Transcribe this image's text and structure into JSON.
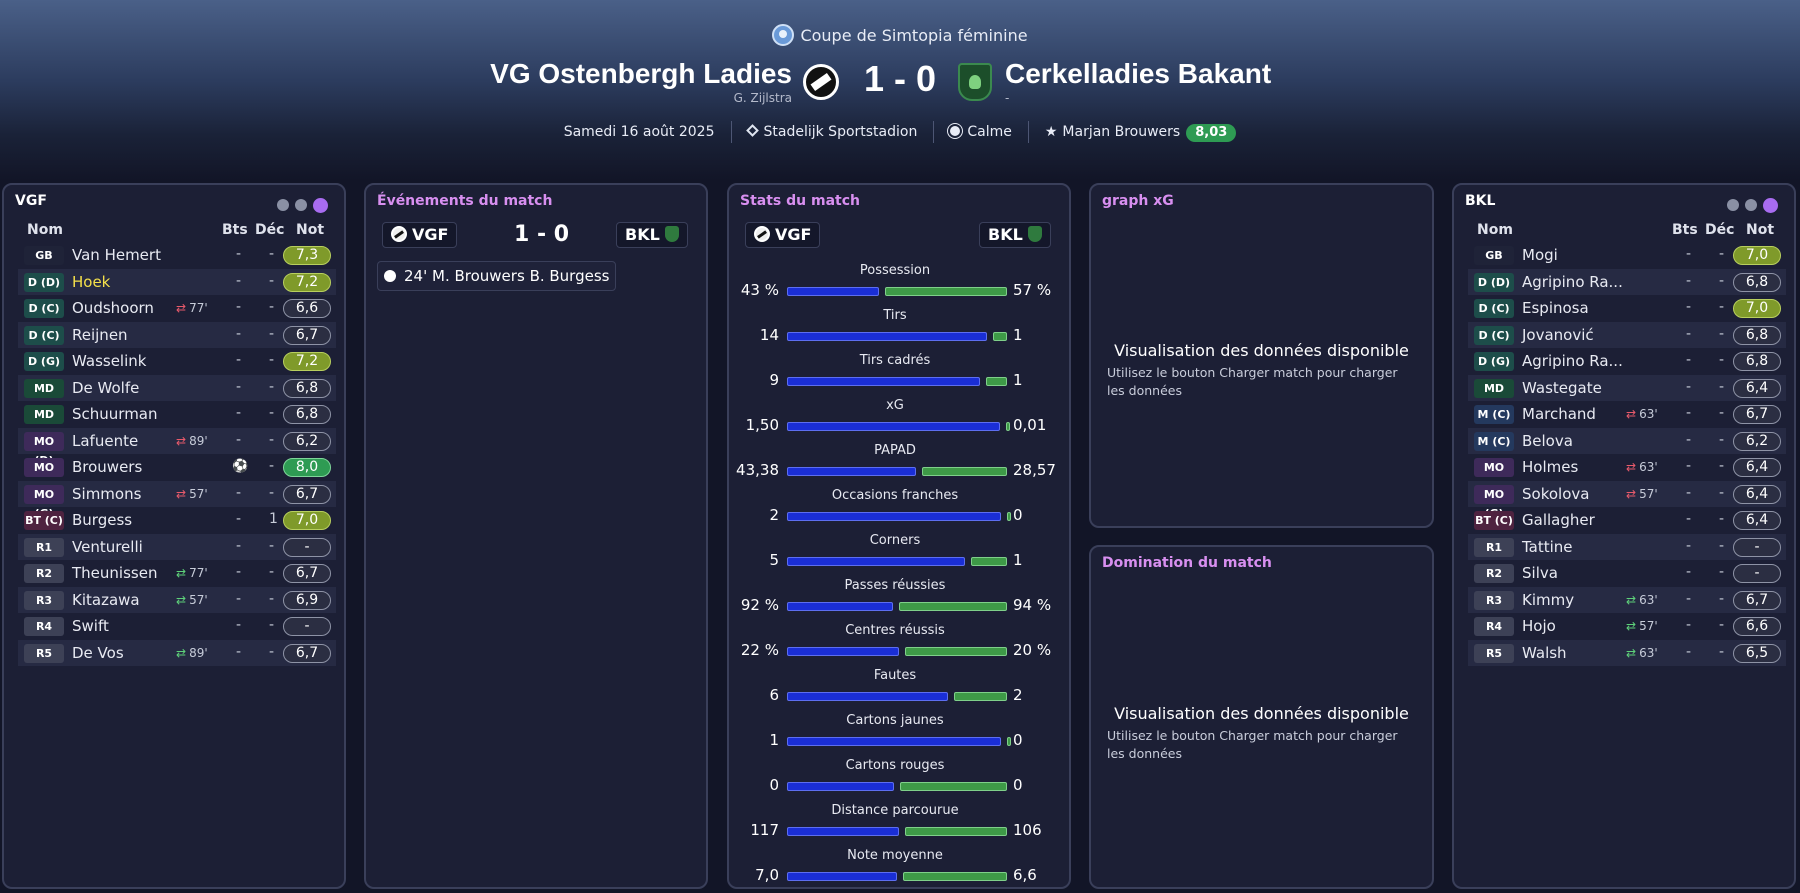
{
  "header": {
    "competition": "Coupe de Simtopia féminine",
    "home": {
      "name": "VG Ostenbergh Ladies",
      "manager": "G. Zijlstra",
      "icon": "home-club-badge"
    },
    "away": {
      "name": "Cerkelladies Bakant",
      "manager": "-",
      "icon": "away-club-badge"
    },
    "score": "1 - 0",
    "date": "Samedi 16 août 2025",
    "stadium": "Stadelijk Sportstadion",
    "weather": "Calme",
    "player_of_match": "Marjan Brouwers",
    "player_of_match_rating": "8,03",
    "colors": {
      "rating_chip": "#2e9b53",
      "accent": "#a86cf0",
      "home_bar": "#1a2ed6",
      "away_bar": "#3e9a47"
    }
  },
  "home_panel": {
    "title": "VGF",
    "columns": {
      "name": "Nom",
      "goals": "Bts",
      "dec": "Déc",
      "rating": "Not"
    },
    "players": [
      {
        "pos": "GB",
        "name": "Van Hemert",
        "sub": "",
        "bts": "-",
        "dec": "-",
        "rating": "7,3"
      },
      {
        "pos": "D (D)",
        "name": "Hoek",
        "sub": "",
        "bts": "-",
        "dec": "-",
        "rating": "7,2"
      },
      {
        "pos": "D (C)",
        "name": "Oudshoorn",
        "sub": "77'",
        "bts": "-",
        "dec": "-",
        "rating": "6,6"
      },
      {
        "pos": "D (C)",
        "name": "Reijnen",
        "sub": "",
        "bts": "-",
        "dec": "-",
        "rating": "6,7"
      },
      {
        "pos": "D (G)",
        "name": "Wasselink",
        "sub": "",
        "bts": "-",
        "dec": "-",
        "rating": "7,2"
      },
      {
        "pos": "MD",
        "name": "De Wolfe",
        "sub": "",
        "bts": "-",
        "dec": "-",
        "rating": "6,8"
      },
      {
        "pos": "MD",
        "name": "Schuurman",
        "sub": "",
        "bts": "-",
        "dec": "-",
        "rating": "6,8"
      },
      {
        "pos": "MO (D)",
        "name": "Lafuente",
        "sub": "89'",
        "bts": "-",
        "dec": "-",
        "rating": "6,2"
      },
      {
        "pos": "MO (C)",
        "name": "Brouwers",
        "sub": "",
        "bts": "",
        "dec": "-",
        "rating": "8,0"
      },
      {
        "pos": "MO (G)",
        "name": "Simmons",
        "sub": "57'",
        "bts": "-",
        "dec": "-",
        "rating": "6,7"
      },
      {
        "pos": "BT (C)",
        "name": "Burgess",
        "sub": "",
        "bts": "-",
        "dec": "1",
        "rating": "7,0"
      },
      {
        "pos": "R1",
        "name": "Venturelli",
        "sub": "",
        "bts": "-",
        "dec": "-",
        "rating": "-"
      },
      {
        "pos": "R2",
        "name": "Theunissen",
        "sub": "77'",
        "bts": "-",
        "dec": "-",
        "rating": "6,7"
      },
      {
        "pos": "R3",
        "name": "Kitazawa",
        "sub": "57'",
        "bts": "-",
        "dec": "-",
        "rating": "6,9"
      },
      {
        "pos": "R4",
        "name": "Swift",
        "sub": "",
        "bts": "-",
        "dec": "-",
        "rating": "-"
      },
      {
        "pos": "R5",
        "name": "De Vos",
        "sub": "89'",
        "bts": "-",
        "dec": "-",
        "rating": "6,7"
      }
    ]
  },
  "away_panel": {
    "title": "BKL",
    "columns": {
      "name": "Nom",
      "goals": "Bts",
      "dec": "Déc",
      "rating": "Not"
    },
    "players": [
      {
        "pos": "GB",
        "name": "Mogi",
        "sub": "",
        "bts": "-",
        "dec": "-",
        "rating": "7,0"
      },
      {
        "pos": "D (D)",
        "name": "Agripino Ra...",
        "sub": "",
        "bts": "-",
        "dec": "-",
        "rating": "6,8"
      },
      {
        "pos": "D (C)",
        "name": "Espinosa",
        "sub": "",
        "bts": "-",
        "dec": "-",
        "rating": "7,0"
      },
      {
        "pos": "D (C)",
        "name": "Jovanović",
        "sub": "",
        "bts": "-",
        "dec": "-",
        "rating": "6,8"
      },
      {
        "pos": "D (G)",
        "name": "Agripino Ra...",
        "sub": "",
        "bts": "-",
        "dec": "-",
        "rating": "6,8"
      },
      {
        "pos": "MD",
        "name": "Wastegate",
        "sub": "",
        "bts": "-",
        "dec": "-",
        "rating": "6,4"
      },
      {
        "pos": "M (C)",
        "name": "Marchand",
        "sub": "63'",
        "bts": "-",
        "dec": "-",
        "rating": "6,7"
      },
      {
        "pos": "M (C)",
        "name": "Belova",
        "sub": "",
        "bts": "-",
        "dec": "-",
        "rating": "6,2"
      },
      {
        "pos": "MO (D)",
        "name": "Holmes",
        "sub": "63'",
        "bts": "-",
        "dec": "-",
        "rating": "6,4"
      },
      {
        "pos": "MO (G)",
        "name": "Sokolova",
        "sub": "57'",
        "bts": "-",
        "dec": "-",
        "rating": "6,4"
      },
      {
        "pos": "BT (C)",
        "name": "Gallagher",
        "sub": "",
        "bts": "-",
        "dec": "-",
        "rating": "6,4"
      },
      {
        "pos": "R1",
        "name": "Tattine",
        "sub": "",
        "bts": "-",
        "dec": "-",
        "rating": "-"
      },
      {
        "pos": "R2",
        "name": "Silva",
        "sub": "",
        "bts": "-",
        "dec": "-",
        "rating": "-"
      },
      {
        "pos": "R3",
        "name": "Kimmy",
        "sub": "63'",
        "bts": "-",
        "dec": "-",
        "rating": "6,7"
      },
      {
        "pos": "R4",
        "name": "Hojo",
        "sub": "57'",
        "bts": "-",
        "dec": "-",
        "rating": "6,6"
      },
      {
        "pos": "R5",
        "name": "Walsh",
        "sub": "63'",
        "bts": "-",
        "dec": "-",
        "rating": "6,5"
      }
    ]
  },
  "events_panel": {
    "title": "Événements du match",
    "home_abbr": "VGF",
    "away_abbr": "BKL",
    "score": "1 - 0",
    "events": [
      {
        "minute": "24'",
        "scorer": "M. Brouwers",
        "assist": "B. Burgess",
        "icon": "goal-ball-icon"
      }
    ]
  },
  "stats_panel": {
    "title": "Stats du match",
    "home_abbr": "VGF",
    "away_abbr": "BKL",
    "stats": [
      {
        "label": "Possession",
        "home": "43 %",
        "away": "57 %",
        "home_share": 0.43
      },
      {
        "label": "Tirs",
        "home": "14",
        "away": "1",
        "home_share": 0.9333
      },
      {
        "label": "Tirs cadrés",
        "home": "9",
        "away": "1",
        "home_share": 0.9
      },
      {
        "label": "xG",
        "home": "1,50",
        "away": "0,01",
        "home_share": 0.9934
      },
      {
        "label": "PAPAD",
        "home": "43,38",
        "away": "28,57",
        "home_share": 0.6029
      },
      {
        "label": "Occasions franches",
        "home": "2",
        "away": "0",
        "home_share": 1.0
      },
      {
        "label": "Corners",
        "home": "5",
        "away": "1",
        "home_share": 0.8333
      },
      {
        "label": "Passes réussies",
        "home": "92 %",
        "away": "94 %",
        "home_share": 0.4946
      },
      {
        "label": "Centres réussis",
        "home": "22 %",
        "away": "20 %",
        "home_share": 0.5238
      },
      {
        "label": "Fautes",
        "home": "6",
        "away": "2",
        "home_share": 0.75
      },
      {
        "label": "Cartons jaunes",
        "home": "1",
        "away": "0",
        "home_share": 1.0
      },
      {
        "label": "Cartons rouges",
        "home": "0",
        "away": "0",
        "home_share": 0.5
      },
      {
        "label": "Distance parcourue",
        "home": "117",
        "away": "106",
        "home_share": 0.5247
      },
      {
        "label": "Note moyenne",
        "home": "7,0",
        "away": "6,6",
        "home_share": 0.5147
      }
    ]
  },
  "xg_panel": {
    "title": "graph xG",
    "empty_title": "Visualisation des données disponible",
    "empty_sub": "Utilisez le bouton Charger match pour charger les données"
  },
  "domination_panel": {
    "title": "Domination du match",
    "empty_title": "Visualisation des données disponible",
    "empty_sub": "Utilisez le bouton Charger match pour charger les données"
  }
}
